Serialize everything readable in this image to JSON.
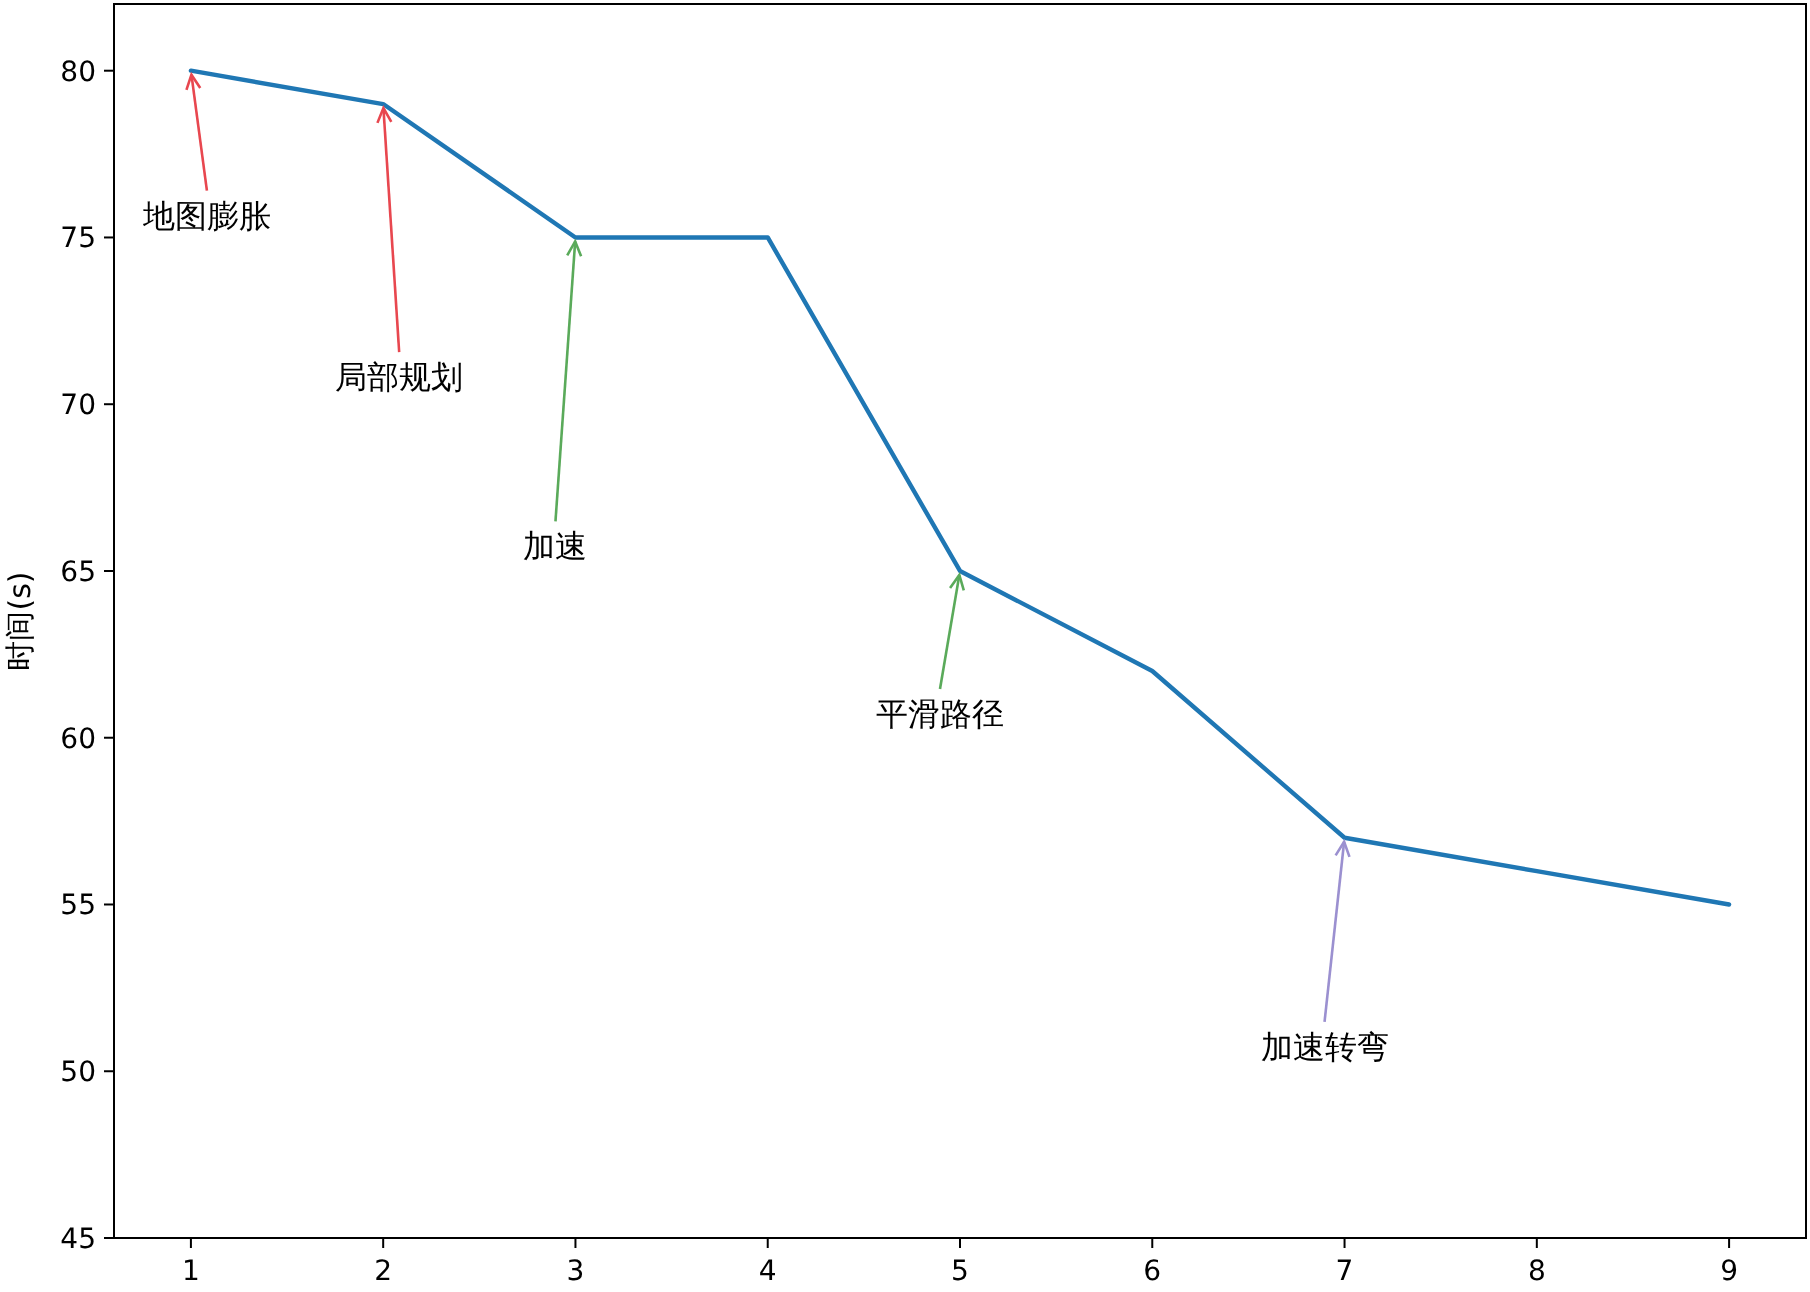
{
  "chart_data": {
    "type": "line",
    "ylabel": "时间(s)",
    "x": [
      1,
      2,
      3,
      4,
      5,
      6,
      7,
      8,
      9
    ],
    "series": [
      {
        "color": "#1f77b4",
        "values": [
          80,
          79,
          75,
          75,
          65,
          62,
          57,
          56,
          55
        ]
      }
    ],
    "xlim": [
      0.6,
      9.4
    ],
    "ylim": [
      45,
      82
    ],
    "xticks": [
      1,
      2,
      3,
      4,
      5,
      6,
      7,
      8,
      9
    ],
    "yticks": [
      45,
      50,
      55,
      60,
      65,
      70,
      75,
      80
    ],
    "grid": false,
    "marker": "none",
    "line_style": "solid",
    "annotations": [
      {
        "text": "地图膨胀",
        "x": 1,
        "y": 80
      },
      {
        "text": "局部规划",
        "x": 2,
        "y": 79
      },
      {
        "text": "加速",
        "x": 3,
        "y": 75
      },
      {
        "text": "平滑路径",
        "x": 5,
        "y": 65
      },
      {
        "text": "加速转弯",
        "x": 7,
        "y": 57
      }
    ]
  }
}
